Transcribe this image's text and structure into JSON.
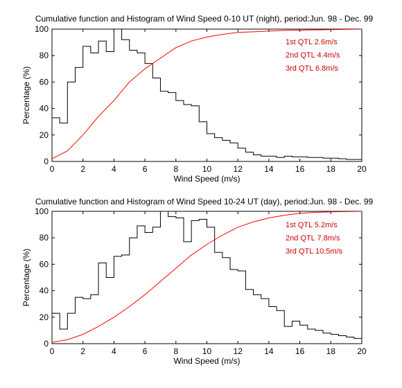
{
  "colors": {
    "histogram": "#000000",
    "cumulative": "#ff0000",
    "annotation": "#cc0000",
    "axes": "#000000"
  },
  "chart_data": [
    {
      "type": "line",
      "title": "Cumulative function and Histogram of Wind Speed 0-10 UT (night),  period:Jun. 98 - Dec. 99",
      "xlabel": "Wind Speed (m/s)",
      "ylabel": "Percentage (%)",
      "xlim": [
        0,
        20
      ],
      "ylim": [
        0,
        100
      ],
      "xticks": [
        "0",
        "2",
        "4",
        "6",
        "8",
        "10",
        "12",
        "14",
        "16",
        "18",
        "20"
      ],
      "yticks": [
        "0",
        "20",
        "40",
        "60",
        "80",
        "100"
      ],
      "grid": false,
      "annotations": [
        "1st QTL 2.6m/s",
        "2nd QTL 4.4m/s",
        "3rd QTL 6.8m/s"
      ],
      "series": [
        {
          "style": "stairs",
          "x": [
            0,
            0.5,
            1,
            1.5,
            2,
            2.5,
            3,
            3.5,
            4,
            4.5,
            5,
            5.5,
            6,
            6.5,
            7,
            7.5,
            8,
            8.5,
            9,
            9.5,
            10,
            10.5,
            11,
            11.5,
            12,
            12.5,
            13,
            13.5,
            14,
            14.5,
            15,
            15.5,
            16,
            16.5,
            17,
            17.5,
            18,
            18.5,
            19,
            19.5,
            20
          ],
          "values": [
            33,
            29,
            60,
            71,
            87,
            82,
            91,
            83,
            100,
            92,
            84,
            82,
            74,
            63,
            53,
            52,
            46,
            43,
            42,
            30,
            21,
            18,
            16,
            14,
            10,
            7,
            5,
            4,
            4,
            3,
            4,
            3.5,
            3.5,
            3,
            3,
            2.5,
            2.5,
            2,
            1.5,
            1.5,
            0.5
          ]
        },
        {
          "style": "line",
          "x": [
            0,
            1,
            2,
            3,
            4,
            5,
            6,
            7,
            8,
            9,
            10,
            11,
            12,
            13,
            14,
            15,
            16,
            17,
            18,
            19,
            20
          ],
          "values": [
            2,
            8,
            20,
            34,
            46,
            60,
            70,
            78,
            86,
            91,
            94,
            96,
            97.5,
            98,
            98.5,
            99,
            99.2,
            99.4,
            99.6,
            99.8,
            100
          ]
        }
      ]
    },
    {
      "type": "line",
      "title": "Cumulative function and Histogram of Wind Speed 10-24 UT (day),  period:Jun. 98 - Dec. 99",
      "xlabel": "Wind Speed (m/s)",
      "ylabel": "Percentage (%)",
      "xlim": [
        0,
        20
      ],
      "ylim": [
        0,
        100
      ],
      "xticks": [
        "0",
        "2",
        "4",
        "6",
        "8",
        "10",
        "12",
        "14",
        "16",
        "18",
        "20"
      ],
      "yticks": [
        "0",
        "20",
        "40",
        "60",
        "80",
        "100"
      ],
      "grid": false,
      "annotations": [
        "1st QTL 5.2m/s",
        "2nd QTL 7.8m/s",
        "3rd QTL 10.5m/s"
      ],
      "series": [
        {
          "style": "stairs",
          "x": [
            0,
            0.5,
            1,
            1.5,
            2,
            2.5,
            3,
            3.5,
            4,
            4.5,
            5,
            5.5,
            6,
            6.5,
            7,
            7.5,
            8,
            8.5,
            9,
            9.5,
            10,
            10.5,
            11,
            11.5,
            12,
            12.5,
            13,
            13.5,
            14,
            14.5,
            15,
            15.5,
            16,
            16.5,
            17,
            17.5,
            18,
            18.5,
            19,
            19.5,
            20
          ],
          "values": [
            23,
            11,
            23,
            35,
            34,
            37,
            61,
            50,
            66,
            67,
            80,
            89,
            84,
            88,
            100,
            96,
            95,
            77,
            93,
            94,
            88,
            69,
            65,
            56,
            55,
            41,
            37,
            34,
            28,
            25,
            13,
            17,
            14,
            11,
            10,
            8,
            7,
            6,
            5,
            4,
            3
          ]
        },
        {
          "style": "line",
          "x": [
            0,
            1,
            2,
            3,
            4,
            5,
            6,
            7,
            8,
            9,
            10,
            11,
            12,
            13,
            14,
            15,
            16,
            17,
            18,
            19,
            20
          ],
          "values": [
            1,
            3,
            7,
            13,
            20,
            28,
            37,
            47,
            57,
            67,
            75,
            82,
            88,
            92,
            95,
            97,
            98.5,
            99.2,
            99.6,
            99.8,
            100
          ]
        }
      ]
    }
  ]
}
